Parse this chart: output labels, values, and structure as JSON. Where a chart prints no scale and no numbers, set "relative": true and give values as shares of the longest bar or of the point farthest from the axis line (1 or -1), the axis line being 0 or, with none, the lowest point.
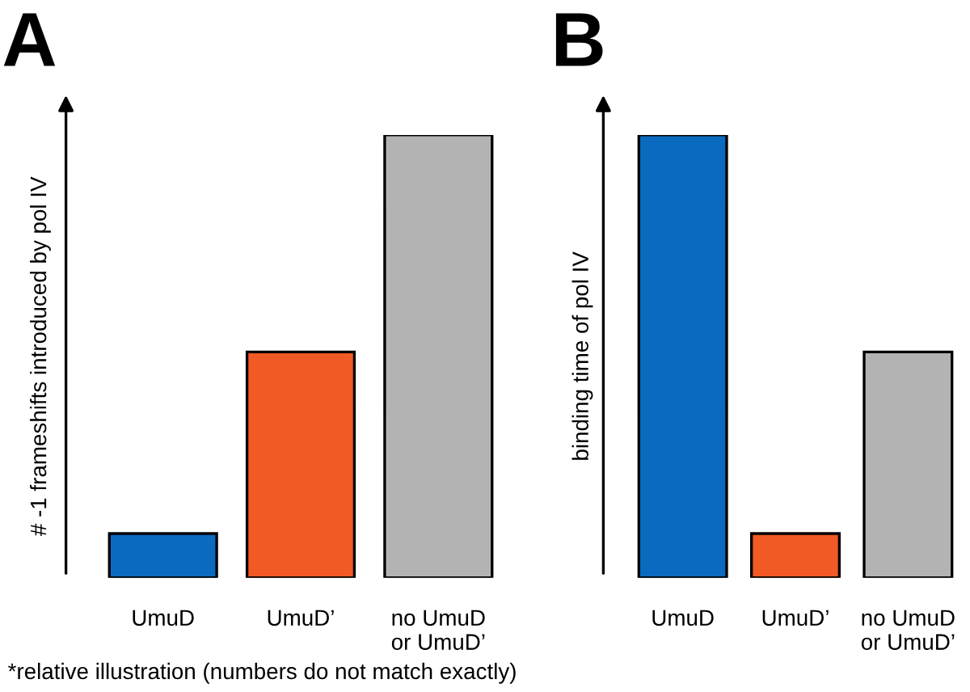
{
  "chart_data": [
    {
      "type": "bar",
      "title": "A",
      "ylabel": "# -1 frameshifts introduced by pol IV",
      "relative": true,
      "categories": [
        "UmuD",
        "UmuD’",
        "no UmuD\nor UmuD’"
      ],
      "values": [
        0.1,
        0.51,
        1
      ],
      "colors": [
        "#0a6abf",
        "#f15a24",
        "#b3b3b3"
      ],
      "annotations": [
        "*relative illustration (numbers do not match exactly)"
      ]
    },
    {
      "type": "bar",
      "title": "B",
      "ylabel": "binding time of pol IV",
      "relative": true,
      "categories": [
        "UmuD",
        "UmuD’",
        "no UmuD\nor UmuD’"
      ],
      "values": [
        1,
        0.1,
        0.51
      ],
      "colors": [
        "#0a6abf",
        "#f15a24",
        "#b3b3b3"
      ]
    }
  ]
}
